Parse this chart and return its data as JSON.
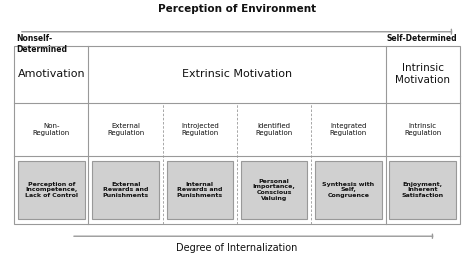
{
  "bg_color": "#ffffff",
  "box_fill": "#d0d0d0",
  "box_edge": "#999999",
  "line_color": "#999999",
  "text_color": "#111111",
  "top_arrow_label": "Perception of Environment",
  "top_arrow_left": "Nonself-\nDetermined",
  "top_arrow_right": "Self-Determined",
  "bottom_arrow_label": "Degree of Internalization",
  "motivation_labels": [
    "Amotivation",
    "Extrinsic Motivation",
    "Intrinsic\nMotivation"
  ],
  "regulation_labels": [
    "Non-\nRegulation",
    "External\nRegulation",
    "Introjected\nRegulation",
    "Identified\nRegulation",
    "Integrated\nRegulation",
    "Intrinsic\nRegulation"
  ],
  "box_labels": [
    "Perception of\nIncompetence,\nLack of Control",
    "External\nRewards and\nPunishments",
    "Internal\nRewards and\nPunishments",
    "Personal\nImportance,\nConscious\nValuing",
    "Synthesis with\nSelf,\nCongruence",
    "Enjoyment,\nInherent\nSatisfaction"
  ],
  "n_cols": 6,
  "figsize": [
    4.74,
    2.54
  ],
  "dpi": 100
}
